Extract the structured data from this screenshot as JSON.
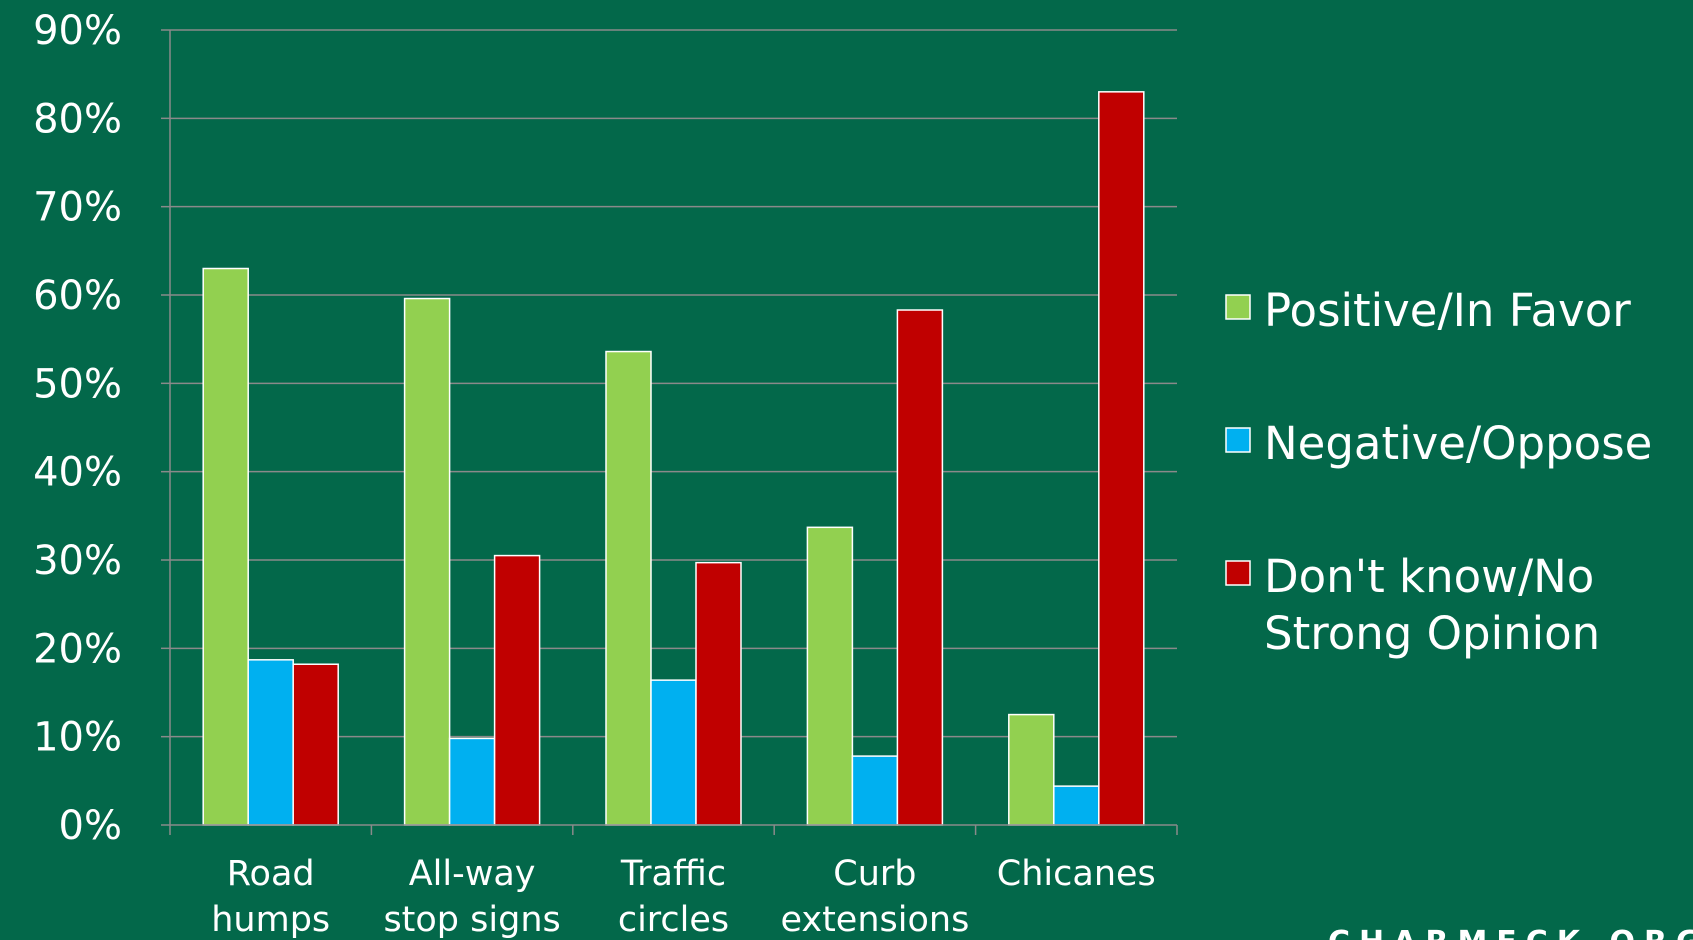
{
  "chart_data": {
    "type": "bar",
    "categories": [
      [
        "Road",
        "humps"
      ],
      [
        "All-way",
        "stop signs"
      ],
      [
        "Traffic",
        "circles"
      ],
      [
        "Curb",
        "extensions"
      ],
      [
        "Chicanes"
      ]
    ],
    "series": [
      {
        "name": "Positive/In Favor",
        "color": "#92d050",
        "values": [
          63,
          59.6,
          53.6,
          33.7,
          12.5
        ]
      },
      {
        "name": "Negative/Oppose",
        "color": "#00b0f0",
        "values": [
          18.7,
          9.8,
          16.4,
          7.8,
          4.4
        ]
      },
      {
        "name": "Don't know/No Strong Opinion",
        "legend_lines": [
          "Don't know/No",
          "Strong Opinion"
        ],
        "color": "#c00000",
        "values": [
          18.2,
          30.5,
          29.7,
          58.3,
          83
        ]
      }
    ],
    "ylim": [
      0,
      90
    ],
    "yticks": [
      "0%",
      "10%",
      "20%",
      "30%",
      "40%",
      "50%",
      "60%",
      "70%",
      "80%",
      "90%"
    ],
    "grid": true,
    "legend": "right",
    "title": "",
    "xlabel": "",
    "ylabel": ""
  },
  "watermark": "CHARMECK.ORG"
}
